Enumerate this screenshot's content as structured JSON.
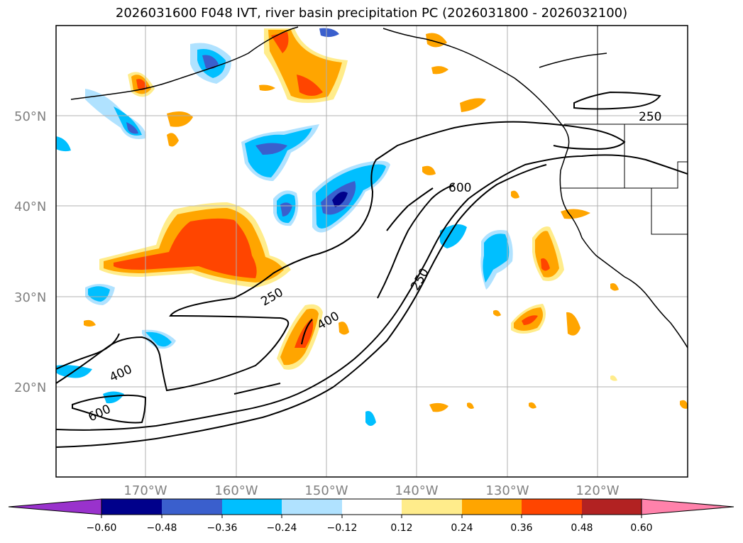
{
  "title": "2026031600 F048 IVT, river basin precipitation PC (2026031800 - 2026032100)",
  "map": {
    "lat_labels": [
      "50°N",
      "40°N",
      "30°N",
      "20°N"
    ],
    "lon_labels": [
      "170°W",
      "160°W",
      "150°W",
      "140°W",
      "130°W",
      "120°W"
    ],
    "contour_labels": [
      "250",
      "600",
      "250",
      "250",
      "400",
      "400",
      "600"
    ],
    "contour_levels": [
      250,
      400,
      600
    ],
    "line_color": "#000000",
    "grid_color": "#b0b0b0"
  },
  "colorbar": {
    "tick_labels": [
      "−0.60",
      "−0.48",
      "−0.36",
      "−0.24",
      "−0.12",
      "0.12",
      "0.24",
      "0.36",
      "0.48",
      "0.60"
    ],
    "colors": [
      "#9932cc",
      "#00008b",
      "#3a5fcd",
      "#00bfff",
      "#b0e2ff",
      "#ffffff",
      "#ffec8b",
      "#ffa500",
      "#ff4500",
      "#b22222",
      "#ff82ab"
    ]
  }
}
